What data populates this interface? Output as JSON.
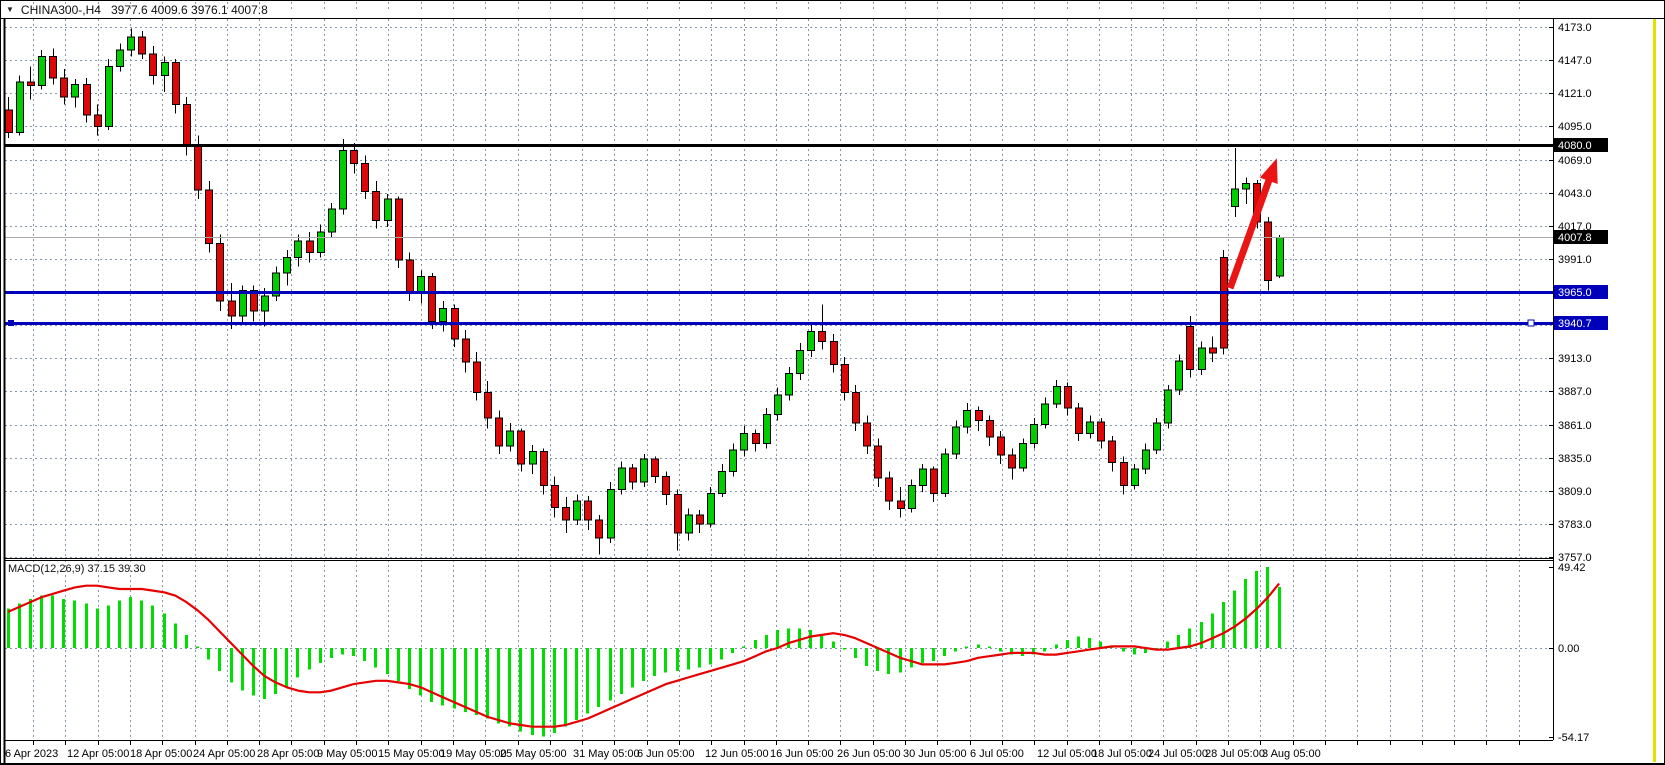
{
  "header": {
    "symbol": "CHINA300-",
    "timeframe": "H4",
    "title": "CHINA300-,H4",
    "ohlc_text": "3977.6 4009.6 3976.1 4007.8"
  },
  "colors": {
    "background": "#ffffff",
    "bull": "#00cd00",
    "bear": "#dd0707",
    "wick": "#000000",
    "grid": "#8696ab",
    "panel_border": "#000000",
    "axis_text": "#000000",
    "histogram": "#00dd00",
    "signal_line": "#e60000",
    "arrow": "#ea1515",
    "level_black": "#000000",
    "level_blue": "#0000bb",
    "current_price_line": "#aaaaaa",
    "right_edge_accent": "#e2e200"
  },
  "price_axis": {
    "labels": [
      "4173.0",
      "4147.0",
      "4121.0",
      "4095.0",
      "4069.0",
      "4043.0",
      "4017.0",
      "3991.0",
      "3913.0",
      "3887.0",
      "3861.0",
      "3835.0",
      "3809.0",
      "3783.0",
      "3757.0"
    ],
    "max": 4173.0,
    "min": 3757.0,
    "step": 26.0
  },
  "price_markers": [
    {
      "text": "4080.0",
      "value": 4080.0,
      "bg": "#000000",
      "fg": "#ffffff",
      "name": "price-tag-4080"
    },
    {
      "text": "4007.8",
      "value": 4007.8,
      "bg": "#000000",
      "fg": "#ffffff",
      "name": "price-tag-current"
    },
    {
      "text": "3965.0",
      "value": 3965.0,
      "bg": "#0000bb",
      "fg": "#ffffff",
      "name": "price-tag-3965"
    },
    {
      "text": "3940.7",
      "value": 3940.7,
      "bg": "#0000bb",
      "fg": "#ffffff",
      "name": "price-tag-3940"
    }
  ],
  "hlines": [
    {
      "name": "resistance-line-4080",
      "value": 4080.0,
      "color": "#000000",
      "width": 3
    },
    {
      "name": "support-line-3965",
      "value": 3965.0,
      "color": "#0000bb",
      "width": 3
    },
    {
      "name": "support-line-3940",
      "value": 3940.7,
      "color": "#0000bb",
      "width": 3
    },
    {
      "name": "current-price-line",
      "value": 4007.8,
      "color": "#aaaaaa",
      "width": 1
    }
  ],
  "time_axis": {
    "labels": [
      "6 Apr 2023",
      "12 Apr 05:00",
      "18 Apr 05:00",
      "24 Apr 05:00",
      "28 Apr 05:00",
      "9 May 05:00",
      "15 May 05:00",
      "19 May 05:00",
      "25 May 05:00",
      "31 May 05:00",
      "6 Jun 05:00",
      "12 Jun 05:00",
      "16 Jun 05:00",
      "26 Jun 05:00",
      "30 Jun 05:00",
      "6 Jul 05:00",
      "12 Jul 05:00",
      "18 Jul 05:00",
      "24 Jul 05:00",
      "28 Jul 05:00",
      "3 Aug 05:00"
    ]
  },
  "macd_axis": {
    "labels": [
      "49.42",
      "0.00",
      "-54.17"
    ]
  },
  "indicator": {
    "label": "MACD(12,26,9) 37.15 39.30",
    "name": "MACD",
    "params": [
      12,
      26,
      9
    ],
    "main_value": 37.15,
    "signal_value": 39.3,
    "scale_max": 49.42,
    "scale_min": -54.17
  },
  "chart_data": {
    "type": "candlestick",
    "symbol": "CHINA300-",
    "timeframe": "H4",
    "title": "CHINA300-,H4  3977.6 4009.6 3976.1 4007.8",
    "current_bar": {
      "open": 3977.6,
      "high": 4009.6,
      "low": 3976.1,
      "close": 4007.8
    },
    "ylim": [
      3757.0,
      4173.0
    ],
    "x_labels": [
      "6 Apr 2023",
      "12 Apr 05:00",
      "18 Apr 05:00",
      "24 Apr 05:00",
      "28 Apr 05:00",
      "9 May 05:00",
      "15 May 05:00",
      "19 May 05:00",
      "25 May 05:00",
      "31 May 05:00",
      "6 Jun 05:00",
      "12 Jun 05:00",
      "16 Jun 05:00",
      "26 Jun 05:00",
      "30 Jun 05:00",
      "6 Jul 05:00",
      "12 Jul 05:00",
      "18 Jul 05:00",
      "24 Jul 05:00",
      "28 Jul 05:00",
      "3 Aug 05:00"
    ],
    "grid": true,
    "levels": [
      4080.0,
      3965.0,
      3940.7
    ],
    "candles_ohlc": [
      [
        4108,
        4118,
        4086,
        4090
      ],
      [
        4090,
        4135,
        4088,
        4130
      ],
      [
        4130,
        4142,
        4116,
        4127
      ],
      [
        4127,
        4155,
        4124,
        4150
      ],
      [
        4150,
        4156,
        4128,
        4133
      ],
      [
        4133,
        4140,
        4112,
        4118
      ],
      [
        4118,
        4132,
        4110,
        4128
      ],
      [
        4128,
        4133,
        4098,
        4104
      ],
      [
        4104,
        4112,
        4088,
        4095
      ],
      [
        4095,
        4148,
        4092,
        4142
      ],
      [
        4142,
        4160,
        4138,
        4155
      ],
      [
        4155,
        4172,
        4150,
        4165
      ],
      [
        4165,
        4170,
        4148,
        4152
      ],
      [
        4152,
        4158,
        4128,
        4135
      ],
      [
        4135,
        4150,
        4122,
        4145
      ],
      [
        4145,
        4148,
        4105,
        4112
      ],
      [
        4112,
        4118,
        4072,
        4080
      ],
      [
        4080,
        4088,
        4038,
        4045
      ],
      [
        4045,
        4052,
        3996,
        4003
      ],
      [
        4003,
        4010,
        3950,
        3958
      ],
      [
        3958,
        3972,
        3936,
        3946
      ],
      [
        3946,
        3970,
        3940,
        3966
      ],
      [
        3966,
        3970,
        3942,
        3950
      ],
      [
        3950,
        3968,
        3938,
        3962
      ],
      [
        3962,
        3985,
        3958,
        3980
      ],
      [
        3980,
        3998,
        3970,
        3992
      ],
      [
        3992,
        4010,
        3985,
        4005
      ],
      [
        4005,
        4012,
        3988,
        3996
      ],
      [
        3996,
        4018,
        3992,
        4012
      ],
      [
        4012,
        4035,
        4008,
        4030
      ],
      [
        4030,
        4085,
        4026,
        4076
      ],
      [
        4076,
        4082,
        4058,
        4066
      ],
      [
        4066,
        4072,
        4038,
        4044
      ],
      [
        4044,
        4052,
        4015,
        4021
      ],
      [
        4021,
        4042,
        4016,
        4038
      ],
      [
        4038,
        4040,
        3984,
        3990
      ],
      [
        3990,
        3996,
        3958,
        3964
      ],
      [
        3964,
        3982,
        3956,
        3977
      ],
      [
        3977,
        3980,
        3936,
        3942
      ],
      [
        3942,
        3958,
        3934,
        3952
      ],
      [
        3952,
        3955,
        3922,
        3928
      ],
      [
        3928,
        3935,
        3902,
        3910
      ],
      [
        3910,
        3918,
        3880,
        3886
      ],
      [
        3886,
        3895,
        3858,
        3866
      ],
      [
        3866,
        3872,
        3838,
        3844
      ],
      [
        3844,
        3862,
        3840,
        3856
      ],
      [
        3856,
        3858,
        3824,
        3830
      ],
      [
        3830,
        3845,
        3822,
        3840
      ],
      [
        3840,
        3842,
        3806,
        3813
      ],
      [
        3813,
        3820,
        3788,
        3796
      ],
      [
        3796,
        3804,
        3776,
        3786
      ],
      [
        3786,
        3806,
        3782,
        3801
      ],
      [
        3801,
        3805,
        3778,
        3786
      ],
      [
        3786,
        3790,
        3759,
        3772
      ],
      [
        3772,
        3816,
        3768,
        3810
      ],
      [
        3810,
        3832,
        3806,
        3827
      ],
      [
        3827,
        3830,
        3810,
        3816
      ],
      [
        3816,
        3838,
        3812,
        3834
      ],
      [
        3834,
        3836,
        3815,
        3820
      ],
      [
        3820,
        3824,
        3798,
        3806
      ],
      [
        3806,
        3810,
        3762,
        3776
      ],
      [
        3776,
        3795,
        3770,
        3790
      ],
      [
        3790,
        3794,
        3776,
        3783
      ],
      [
        3783,
        3812,
        3780,
        3807
      ],
      [
        3807,
        3830,
        3804,
        3824
      ],
      [
        3824,
        3846,
        3820,
        3841
      ],
      [
        3841,
        3860,
        3836,
        3854
      ],
      [
        3854,
        3857,
        3840,
        3846
      ],
      [
        3846,
        3874,
        3842,
        3869
      ],
      [
        3869,
        3890,
        3864,
        3884
      ],
      [
        3884,
        3906,
        3880,
        3901
      ],
      [
        3901,
        3925,
        3896,
        3919
      ],
      [
        3919,
        3940,
        3914,
        3934
      ],
      [
        3934,
        3955,
        3920,
        3926
      ],
      [
        3926,
        3932,
        3902,
        3908
      ],
      [
        3908,
        3914,
        3880,
        3886
      ],
      [
        3886,
        3892,
        3856,
        3862
      ],
      [
        3862,
        3868,
        3838,
        3844
      ],
      [
        3844,
        3850,
        3812,
        3819
      ],
      [
        3819,
        3824,
        3794,
        3801
      ],
      [
        3801,
        3812,
        3788,
        3795
      ],
      [
        3795,
        3818,
        3792,
        3813
      ],
      [
        3813,
        3830,
        3808,
        3826
      ],
      [
        3826,
        3828,
        3800,
        3807
      ],
      [
        3807,
        3842,
        3804,
        3838
      ],
      [
        3838,
        3864,
        3834,
        3859
      ],
      [
        3859,
        3878,
        3854,
        3872
      ],
      [
        3872,
        3875,
        3856,
        3864
      ],
      [
        3864,
        3868,
        3844,
        3851
      ],
      [
        3851,
        3856,
        3830,
        3837
      ],
      [
        3837,
        3842,
        3818,
        3827
      ],
      [
        3827,
        3850,
        3824,
        3846
      ],
      [
        3846,
        3866,
        3842,
        3861
      ],
      [
        3861,
        3882,
        3858,
        3877
      ],
      [
        3877,
        3896,
        3874,
        3891
      ],
      [
        3891,
        3894,
        3868,
        3874
      ],
      [
        3874,
        3878,
        3848,
        3854
      ],
      [
        3854,
        3868,
        3850,
        3863
      ],
      [
        3863,
        3866,
        3842,
        3848
      ],
      [
        3848,
        3852,
        3824,
        3831
      ],
      [
        3831,
        3836,
        3806,
        3813
      ],
      [
        3813,
        3830,
        3810,
        3826
      ],
      [
        3826,
        3846,
        3822,
        3841
      ],
      [
        3841,
        3866,
        3838,
        3862
      ],
      [
        3862,
        3892,
        3858,
        3888
      ],
      [
        3888,
        3916,
        3884,
        3911
      ],
      [
        3938,
        3946,
        3898,
        3904
      ],
      [
        3904,
        3926,
        3900,
        3921
      ],
      [
        3921,
        3930,
        3910,
        3917
      ],
      [
        3992,
        3998,
        3916,
        3921
      ],
      [
        4032,
        4078,
        4024,
        4046
      ],
      [
        4046,
        4055,
        4034,
        4050
      ],
      [
        4050,
        4053,
        4015,
        4020
      ],
      [
        4020,
        4024,
        3966,
        3974
      ],
      [
        3977.6,
        4009.6,
        3976.1,
        4007.8
      ]
    ],
    "macd_histogram": [
      24,
      27,
      30,
      32,
      32,
      30,
      29,
      27,
      24,
      26,
      29,
      31,
      29,
      26,
      21,
      15,
      8,
      1,
      -7,
      -14,
      -21,
      -26,
      -29,
      -31,
      -28,
      -24,
      -18,
      -13,
      -9,
      -6,
      -4,
      -5,
      -8,
      -12,
      -16,
      -20,
      -25,
      -29,
      -33,
      -35,
      -37,
      -39,
      -41,
      -43,
      -46,
      -48,
      -51,
      -53,
      -54,
      -52,
      -48,
      -44,
      -40,
      -36,
      -32,
      -28,
      -24,
      -20,
      -17,
      -15,
      -14,
      -13,
      -12,
      -10,
      -7,
      -3,
      1,
      5,
      8,
      11,
      12,
      12,
      11,
      8,
      4,
      -1,
      -6,
      -11,
      -14,
      -16,
      -15,
      -12,
      -9,
      -8,
      -5,
      -2,
      1,
      2,
      1,
      -2,
      -4,
      -5,
      -4,
      -2,
      2,
      5,
      7,
      6,
      4,
      1,
      -2,
      -4,
      -3,
      0,
      4,
      8,
      12,
      16,
      21,
      28,
      35,
      42,
      47,
      49.4,
      37.2
    ],
    "macd_signal": [
      22,
      25,
      28,
      31,
      33,
      35,
      37,
      38,
      38,
      37,
      36,
      36,
      36,
      35,
      34,
      32,
      28,
      23,
      17,
      10,
      3,
      -4,
      -11,
      -17,
      -21,
      -24,
      -26,
      -27,
      -27,
      -26,
      -24,
      -22,
      -21,
      -20,
      -20,
      -21,
      -22,
      -24,
      -27,
      -30,
      -33,
      -36,
      -39,
      -42,
      -44,
      -46,
      -47,
      -48,
      -48,
      -48,
      -47,
      -45,
      -43,
      -40,
      -37,
      -34,
      -31,
      -28,
      -25,
      -22,
      -20,
      -18,
      -16,
      -14,
      -12,
      -10,
      -8,
      -5,
      -2,
      0,
      3,
      5,
      7,
      8,
      9,
      8,
      6,
      3,
      0,
      -3,
      -6,
      -8,
      -10,
      -10,
      -10,
      -9,
      -8,
      -6,
      -5,
      -4,
      -3,
      -3,
      -3,
      -4,
      -4,
      -3,
      -2,
      -1,
      0,
      1,
      1,
      1,
      0,
      -1,
      -1,
      0,
      1,
      3,
      6,
      9,
      13,
      18,
      24,
      31,
      39.3
    ],
    "annotations": [
      {
        "type": "arrow",
        "color": "#ea1515",
        "from_index": 109.6,
        "from_price": 3968,
        "to_index": 113.8,
        "to_price": 4070
      }
    ]
  }
}
